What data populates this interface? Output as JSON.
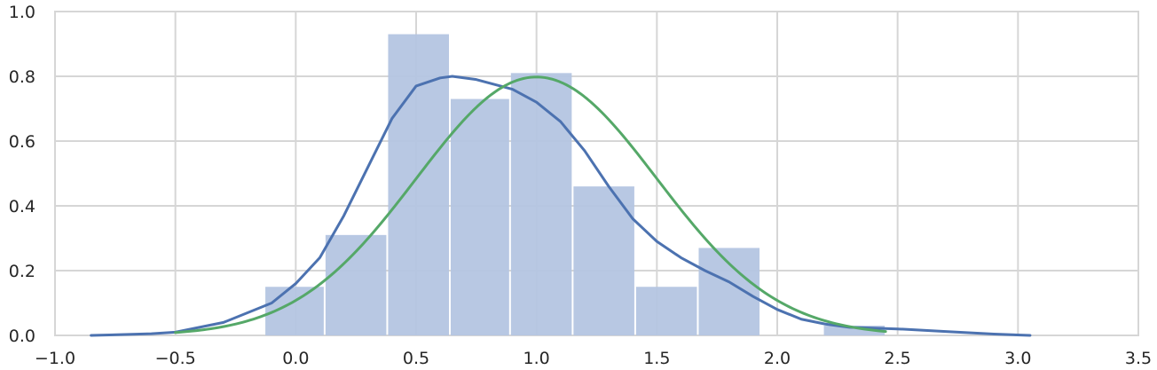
{
  "chart_data": {
    "type": "bar",
    "title": "",
    "xlabel": "",
    "ylabel": "",
    "xlim": [
      -1.0,
      3.5
    ],
    "ylim": [
      0.0,
      1.0
    ],
    "grid": true,
    "xticks": [
      -1.0,
      -0.5,
      0.0,
      0.5,
      1.0,
      1.5,
      2.0,
      2.5,
      3.0,
      3.5
    ],
    "xtick_labels": [
      "−1.0",
      "−0.5",
      "0.0",
      "0.5",
      "1.0",
      "1.5",
      "2.0",
      "2.5",
      "3.0",
      "3.5"
    ],
    "yticks": [
      0.0,
      0.2,
      0.4,
      0.6,
      0.8,
      1.0
    ],
    "ytick_labels": [
      "0.0",
      "0.2",
      "0.4",
      "0.6",
      "0.8",
      "1.0"
    ],
    "histogram": {
      "bins": [
        {
          "x0": -0.13,
          "x1": 0.12,
          "height": 0.15
        },
        {
          "x0": 0.12,
          "x1": 0.38,
          "height": 0.31
        },
        {
          "x0": 0.38,
          "x1": 0.64,
          "height": 0.93
        },
        {
          "x0": 0.64,
          "x1": 0.89,
          "height": 0.73
        },
        {
          "x0": 0.89,
          "x1": 1.15,
          "height": 0.81
        },
        {
          "x0": 1.15,
          "x1": 1.41,
          "height": 0.46
        },
        {
          "x0": 1.41,
          "x1": 1.67,
          "height": 0.15
        },
        {
          "x0": 1.67,
          "x1": 1.93,
          "height": 0.27
        },
        {
          "x0": 1.93,
          "x1": 2.19,
          "height": 0.0
        },
        {
          "x0": 2.19,
          "x1": 2.45,
          "height": 0.03
        }
      ],
      "color": "#b4c5e1"
    },
    "series": [
      {
        "kind": "kde",
        "color": "#4c72b0",
        "x": [
          -0.85,
          -0.6,
          -0.5,
          -0.3,
          -0.1,
          0.0,
          0.1,
          0.2,
          0.3,
          0.4,
          0.5,
          0.6,
          0.65,
          0.75,
          0.9,
          1.0,
          1.1,
          1.2,
          1.3,
          1.4,
          1.5,
          1.6,
          1.7,
          1.8,
          1.9,
          2.0,
          2.1,
          2.2,
          2.3,
          2.5,
          2.7,
          2.9,
          3.05
        ],
        "y": [
          0.0,
          0.005,
          0.01,
          0.04,
          0.1,
          0.16,
          0.24,
          0.37,
          0.52,
          0.67,
          0.77,
          0.795,
          0.8,
          0.79,
          0.76,
          0.72,
          0.66,
          0.57,
          0.46,
          0.36,
          0.29,
          0.24,
          0.2,
          0.165,
          0.12,
          0.08,
          0.05,
          0.035,
          0.025,
          0.02,
          0.012,
          0.004,
          0.0
        ]
      },
      {
        "kind": "normal-fit",
        "color": "#55a868",
        "mean": 1.0,
        "std": 0.5,
        "x_range": [
          -0.5,
          2.45
        ]
      }
    ]
  }
}
